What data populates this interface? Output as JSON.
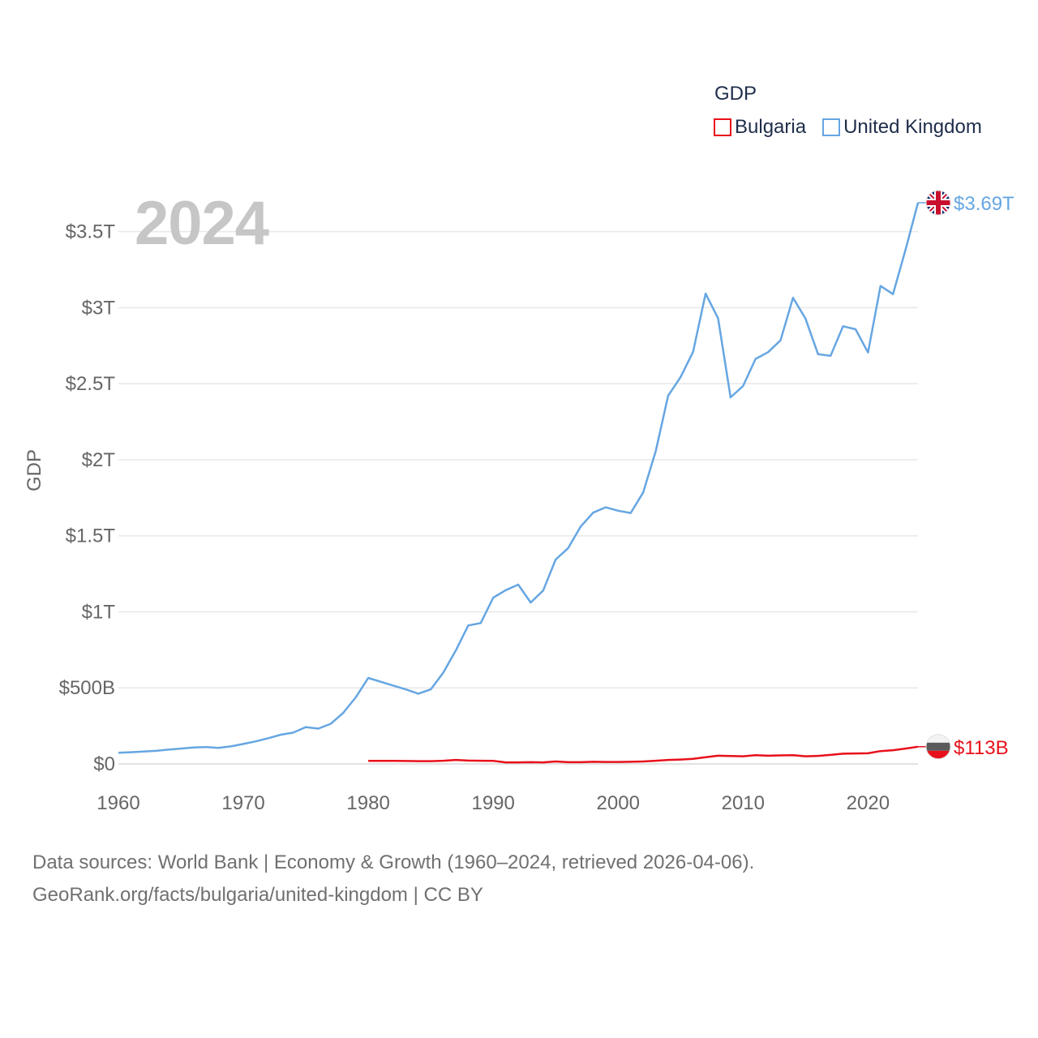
{
  "legend": {
    "title": "GDP",
    "items": [
      {
        "name": "Bulgaria",
        "color": "#e8101a"
      },
      {
        "name": "United Kingdom",
        "color": "#66a6e2"
      }
    ]
  },
  "year_label": "2024",
  "source": {
    "line1": "Data sources: World Bank | Economy & Growth (1960–2024, retrieved 2026-04-06).",
    "line2": "GeoRank.org/facts/bulgaria/united-kingdom | CC BY"
  },
  "chart_data": {
    "type": "line",
    "title": "GDP",
    "xlabel": "",
    "ylabel": "GDP",
    "xlim": [
      1960,
      2024
    ],
    "ylim": [
      0,
      3.69
    ],
    "y_unit": "trillion USD",
    "grid": true,
    "legend_position": "top-right",
    "x_ticks": [
      1960,
      1970,
      1980,
      1990,
      2000,
      2010,
      2020
    ],
    "x_tick_labels": [
      "1960",
      "1970",
      "1980",
      "1990",
      "2000",
      "2010",
      "2020"
    ],
    "y_ticks": [
      0,
      0.5,
      1,
      1.5,
      2,
      2.5,
      3,
      3.5
    ],
    "y_tick_labels": [
      "$0",
      "$500B",
      "$1T",
      "$1.5T",
      "$2T",
      "$2.5T",
      "$3T",
      "$3.5T"
    ],
    "series": [
      {
        "name": "United Kingdom",
        "color": "#66a6e2",
        "end_label": "$3.69T",
        "flag": "uk",
        "x": [
          1960,
          1961,
          1962,
          1963,
          1964,
          1965,
          1966,
          1967,
          1968,
          1969,
          1970,
          1971,
          1972,
          1973,
          1974,
          1975,
          1976,
          1977,
          1978,
          1979,
          1980,
          1981,
          1982,
          1983,
          1984,
          1985,
          1986,
          1987,
          1988,
          1989,
          1990,
          1991,
          1992,
          1993,
          1994,
          1995,
          1996,
          1997,
          1998,
          1999,
          2000,
          2001,
          2002,
          2003,
          2004,
          2005,
          2006,
          2007,
          2008,
          2009,
          2010,
          2011,
          2012,
          2013,
          2014,
          2015,
          2016,
          2017,
          2018,
          2019,
          2020,
          2021,
          2022,
          2023,
          2024
        ],
        "values": [
          0.073,
          0.077,
          0.081,
          0.086,
          0.094,
          0.101,
          0.108,
          0.111,
          0.105,
          0.115,
          0.131,
          0.148,
          0.169,
          0.192,
          0.206,
          0.242,
          0.232,
          0.264,
          0.336,
          0.438,
          0.565,
          0.54,
          0.515,
          0.49,
          0.462,
          0.49,
          0.6,
          0.745,
          0.91,
          0.926,
          1.093,
          1.142,
          1.179,
          1.061,
          1.14,
          1.344,
          1.419,
          1.56,
          1.652,
          1.687,
          1.665,
          1.65,
          1.785,
          2.054,
          2.421,
          2.544,
          2.71,
          3.092,
          2.93,
          2.41,
          2.485,
          2.663,
          2.707,
          2.785,
          3.065,
          2.928,
          2.694,
          2.683,
          2.878,
          2.858,
          2.705,
          3.143,
          3.089,
          3.38,
          3.69
        ]
      },
      {
        "name": "Bulgaria",
        "color": "#e8101a",
        "end_label": "$113B",
        "flag": "bulgaria",
        "x": [
          1980,
          1981,
          1982,
          1983,
          1984,
          1985,
          1986,
          1987,
          1988,
          1989,
          1990,
          1991,
          1992,
          1993,
          1994,
          1995,
          1996,
          1997,
          1998,
          1999,
          2000,
          2001,
          2002,
          2003,
          2004,
          2005,
          2006,
          2007,
          2008,
          2009,
          2010,
          2011,
          2012,
          2013,
          2014,
          2015,
          2016,
          2017,
          2018,
          2019,
          2020,
          2021,
          2022,
          2023,
          2024
        ],
        "values": [
          0.02,
          0.02,
          0.02,
          0.019,
          0.018,
          0.018,
          0.021,
          0.026,
          0.022,
          0.021,
          0.02,
          0.01,
          0.01,
          0.011,
          0.01,
          0.016,
          0.011,
          0.011,
          0.014,
          0.013,
          0.013,
          0.014,
          0.016,
          0.021,
          0.026,
          0.029,
          0.033,
          0.044,
          0.054,
          0.052,
          0.05,
          0.057,
          0.054,
          0.056,
          0.057,
          0.05,
          0.053,
          0.059,
          0.067,
          0.069,
          0.07,
          0.084,
          0.09,
          0.101,
          0.113
        ]
      }
    ]
  }
}
